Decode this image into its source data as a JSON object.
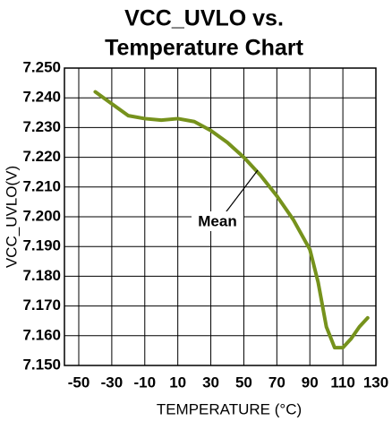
{
  "chart_data": {
    "type": "line",
    "title": [
      "VCC_UVLO vs.",
      "Temperature Chart"
    ],
    "x_label": "TEMPERATURE (°C)",
    "y_label": "VCC_UVLO(V)",
    "annotation": "Mean",
    "xlim": [
      -50,
      130
    ],
    "xticks": [
      -50,
      -30,
      -10,
      10,
      30,
      50,
      70,
      90,
      110,
      130
    ],
    "ylim": [
      7.15,
      7.25
    ],
    "yticks": [
      {
        "value": 7.15,
        "label": "7.150"
      },
      {
        "value": 7.16,
        "label": "7.160"
      },
      {
        "value": 7.17,
        "label": "7.170"
      },
      {
        "value": 7.18,
        "label": "7.180"
      },
      {
        "value": 7.19,
        "label": "7.190"
      },
      {
        "value": 7.2,
        "label": "7.200"
      },
      {
        "value": 7.21,
        "label": "7.210"
      },
      {
        "value": 7.22,
        "label": "7.220"
      },
      {
        "value": 7.23,
        "label": "7.230"
      },
      {
        "value": 7.24,
        "label": "7.240"
      },
      {
        "value": 7.25,
        "label": "7.250"
      }
    ],
    "grid": true,
    "x": [
      -40,
      -30,
      -20,
      -10,
      0,
      10,
      20,
      30,
      40,
      50,
      60,
      70,
      80,
      90,
      95,
      100,
      105,
      110,
      115,
      120,
      125
    ],
    "series": [
      {
        "name": "Mean",
        "color": "#76921c",
        "values": [
          7.242,
          7.238,
          7.234,
          7.233,
          7.2325,
          7.233,
          7.232,
          7.229,
          7.225,
          7.22,
          7.214,
          7.207,
          7.199,
          7.189,
          7.178,
          7.163,
          7.156,
          7.156,
          7.159,
          7.163,
          7.166
        ]
      }
    ]
  }
}
